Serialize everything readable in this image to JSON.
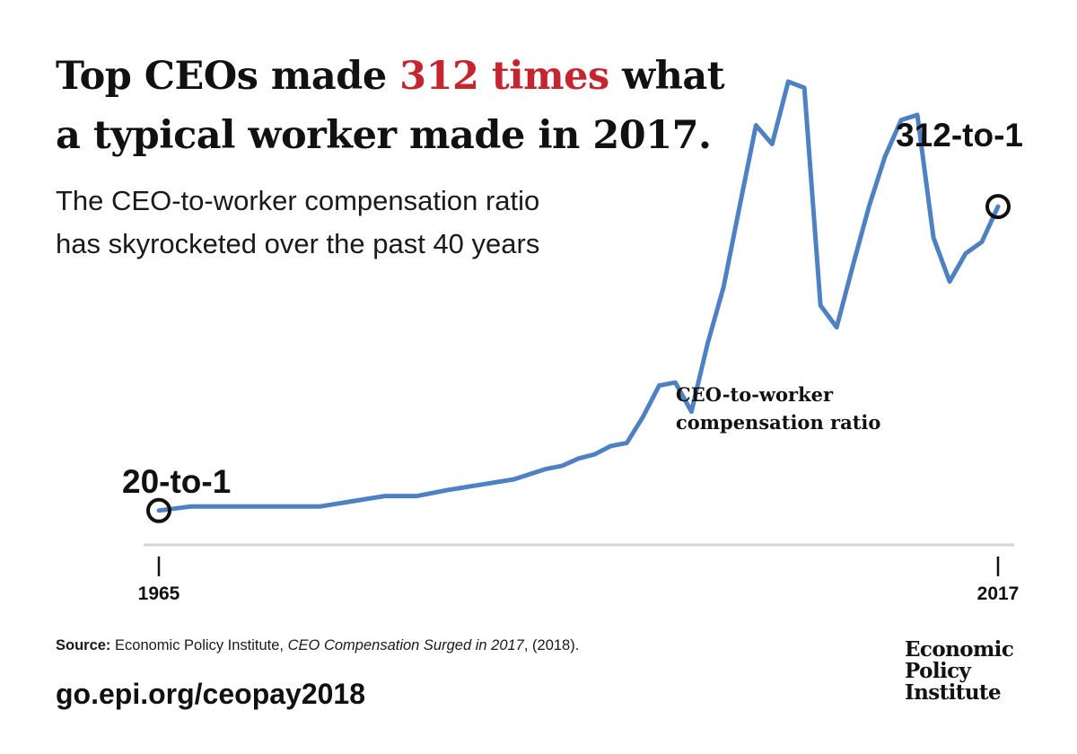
{
  "headline": {
    "part1": "Top CEOs made ",
    "highlight": "312 times",
    "part2": " what a typical worker made in 2017.",
    "highlight_color": "#c5252f"
  },
  "subtitle": {
    "line1": "The CEO-to-worker compensation ratio",
    "line2": "has skyrocketed over the past 40 years"
  },
  "chart_data": {
    "type": "line",
    "series": [
      {
        "name": "CEO-to-worker compensation ratio",
        "color": "#4e81c2",
        "x": [
          1965,
          1967,
          1969,
          1971,
          1973,
          1975,
          1977,
          1979,
          1981,
          1983,
          1985,
          1987,
          1989,
          1990,
          1991,
          1992,
          1993,
          1994,
          1995,
          1996,
          1997,
          1998,
          1999,
          2000,
          2001,
          2002,
          2003,
          2004,
          2005,
          2006,
          2007,
          2008,
          2009,
          2010,
          2011,
          2012,
          2013,
          2014,
          2015,
          2016,
          2017
        ],
        "y": [
          20,
          24,
          24,
          24,
          24,
          24,
          29,
          34,
          34,
          40,
          45,
          50,
          60,
          63,
          70,
          74,
          82,
          85,
          110,
          140,
          143,
          115,
          180,
          235,
          313,
          390,
          372,
          432,
          426,
          217,
          196,
          255,
          312,
          360,
          395,
          400,
          282,
          240,
          267,
          278,
          312
        ]
      }
    ],
    "xlim": [
      1965,
      2017
    ],
    "ylim": [
      0,
      400
    ],
    "x_ticks": [
      "1965",
      "2017"
    ],
    "annotations": {
      "start_label": "20-to-1",
      "end_label": "312-to-1",
      "series_label_line1": "CEO-to-worker",
      "series_label_line2": "compensation ratio"
    },
    "grid": false,
    "legend": "none"
  },
  "source": {
    "label": "Source:",
    "text": " Economic Policy Institute, ",
    "title": "CEO Compensation Surged in 2017",
    "suffix": ", (2018)."
  },
  "url": "go.epi.org/ceopay2018",
  "logo": {
    "line1": "Economic",
    "line2": "Policy",
    "line3": "Institute"
  }
}
